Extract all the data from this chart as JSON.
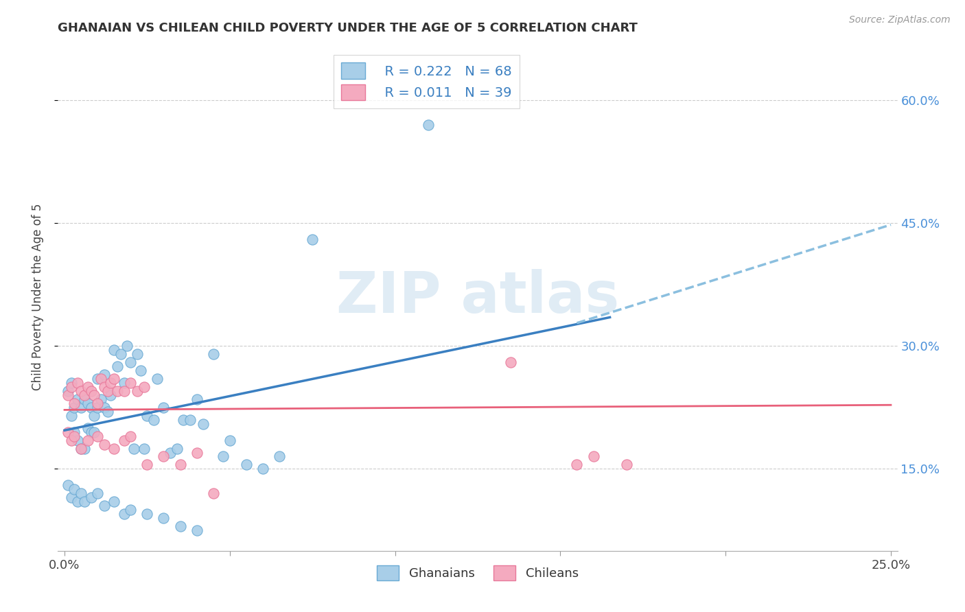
{
  "title": "GHANAIAN VS CHILEAN CHILD POVERTY UNDER THE AGE OF 5 CORRELATION CHART",
  "source_text": "Source: ZipAtlas.com",
  "ylabel": "Child Poverty Under the Age of 5",
  "xlim": [
    -0.002,
    0.252
  ],
  "ylim": [
    0.05,
    0.67
  ],
  "xticks": [
    0.0,
    0.05,
    0.1,
    0.15,
    0.2,
    0.25
  ],
  "xtick_labels": [
    "0.0%",
    "",
    "",
    "",
    "",
    "25.0%"
  ],
  "yticks": [
    0.15,
    0.3,
    0.45,
    0.6
  ],
  "ytick_labels": [
    "15.0%",
    "30.0%",
    "45.0%",
    "60.0%"
  ],
  "ghanaian_color": "#A8CEE8",
  "chilean_color": "#F4AABF",
  "ghanaian_edge_color": "#6AAAD4",
  "chilean_edge_color": "#E8789A",
  "ghanaian_line_color": "#3A7FC1",
  "chilean_line_color": "#E8607A",
  "dashed_line_color": "#8BBFDF",
  "background_color": "#FFFFFF",
  "watermark_color": "#E0ECF5",
  "watermark_text": "ZIP atlas",
  "legend_label1": "Ghanaians",
  "legend_label2": "Chileans",
  "legend_R1": "R = 0.222",
  "legend_N1": "N = 68",
  "legend_R2": "R = 0.011",
  "legend_N2": "N = 39",
  "ghanaian_x": [
    0.001,
    0.002,
    0.002,
    0.003,
    0.003,
    0.004,
    0.004,
    0.005,
    0.005,
    0.006,
    0.006,
    0.007,
    0.007,
    0.008,
    0.008,
    0.009,
    0.009,
    0.01,
    0.01,
    0.011,
    0.012,
    0.012,
    0.013,
    0.014,
    0.015,
    0.016,
    0.017,
    0.018,
    0.019,
    0.02,
    0.021,
    0.022,
    0.023,
    0.024,
    0.025,
    0.027,
    0.028,
    0.03,
    0.032,
    0.034,
    0.036,
    0.038,
    0.04,
    0.042,
    0.045,
    0.048,
    0.05,
    0.055,
    0.06,
    0.065,
    0.001,
    0.002,
    0.003,
    0.004,
    0.005,
    0.006,
    0.008,
    0.01,
    0.012,
    0.015,
    0.018,
    0.02,
    0.025,
    0.03,
    0.035,
    0.04,
    0.075,
    0.11
  ],
  "ghanaian_y": [
    0.245,
    0.215,
    0.255,
    0.225,
    0.195,
    0.235,
    0.185,
    0.225,
    0.175,
    0.235,
    0.175,
    0.23,
    0.2,
    0.195,
    0.225,
    0.215,
    0.195,
    0.225,
    0.26,
    0.235,
    0.225,
    0.265,
    0.22,
    0.24,
    0.295,
    0.275,
    0.29,
    0.255,
    0.3,
    0.28,
    0.175,
    0.29,
    0.27,
    0.175,
    0.215,
    0.21,
    0.26,
    0.225,
    0.17,
    0.175,
    0.21,
    0.21,
    0.235,
    0.205,
    0.29,
    0.165,
    0.185,
    0.155,
    0.15,
    0.165,
    0.13,
    0.115,
    0.125,
    0.11,
    0.12,
    0.11,
    0.115,
    0.12,
    0.105,
    0.11,
    0.095,
    0.1,
    0.095,
    0.09,
    0.08,
    0.075,
    0.43,
    0.57
  ],
  "chilean_x": [
    0.001,
    0.002,
    0.003,
    0.004,
    0.005,
    0.006,
    0.007,
    0.008,
    0.009,
    0.01,
    0.011,
    0.012,
    0.013,
    0.014,
    0.015,
    0.016,
    0.018,
    0.02,
    0.022,
    0.024,
    0.001,
    0.002,
    0.003,
    0.005,
    0.007,
    0.01,
    0.012,
    0.015,
    0.018,
    0.02,
    0.025,
    0.03,
    0.035,
    0.04,
    0.045,
    0.135,
    0.155,
    0.16,
    0.17
  ],
  "chilean_y": [
    0.24,
    0.25,
    0.23,
    0.255,
    0.245,
    0.24,
    0.25,
    0.245,
    0.24,
    0.23,
    0.26,
    0.25,
    0.245,
    0.255,
    0.26,
    0.245,
    0.245,
    0.255,
    0.245,
    0.25,
    0.195,
    0.185,
    0.19,
    0.175,
    0.185,
    0.19,
    0.18,
    0.175,
    0.185,
    0.19,
    0.155,
    0.165,
    0.155,
    0.17,
    0.12,
    0.28,
    0.155,
    0.165,
    0.155
  ],
  "blue_line_x0": 0.0,
  "blue_line_y0": 0.197,
  "blue_line_x1": 0.165,
  "blue_line_y1": 0.335,
  "dashed_line_x0": 0.155,
  "dashed_line_y0": 0.328,
  "dashed_line_x1": 0.25,
  "dashed_line_y1": 0.448,
  "pink_line_x0": 0.0,
  "pink_line_y0": 0.222,
  "pink_line_x1": 0.25,
  "pink_line_y1": 0.228
}
